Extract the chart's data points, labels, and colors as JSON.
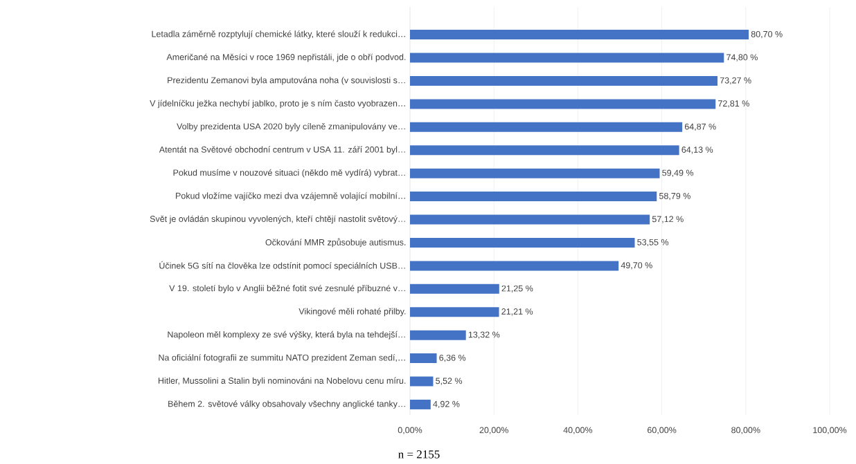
{
  "chart_data": {
    "type": "bar",
    "orientation": "horizontal",
    "categories": [
      "Letadla záměrně rozptylují chemické látky, které slouží k redukci…",
      "Američané na Měsíci v roce 1969 nepřistáli, jde o obří podvod.",
      "Prezidentu Zemanovi byla amputována noha (v souvislosti s…",
      "V jídelníčku ježka nechybí jablko, proto je s ním často vyobrazen…",
      "Volby prezidenta USA 2020 byly cíleně zmanipulovány ve…",
      "Atentát na Světové obchodní centrum v USA 11. září 2001 byl…",
      "Pokud musíme v nouzové situaci (někdo mě vydírá) vybrat…",
      "Pokud vložíme vajíčko mezi dva vzájemně volající mobilní…",
      "Svět je ovládán skupinou vyvolených, kteří chtějí nastolit světový…",
      "Očkování MMR způsobuje autismus.",
      "Účinek 5G sítí na člověka lze odstínit pomocí speciálních USB…",
      "V 19. století bylo v Anglii běžné fotit své zesnulé příbuzné v…",
      "Vikingové měli rohaté přilby.",
      "Napoleon měl komplexy ze své výšky, která byla na tehdejší…",
      "Na oficiální fotografii ze summitu NATO prezident Zeman sedí,…",
      "Hitler, Mussolini a Stalin byli nominováni na Nobelovu cenu míru.",
      "Během 2. světové války obsahovaly všechny anglické tanky…"
    ],
    "values": [
      80.7,
      74.8,
      73.27,
      72.81,
      64.87,
      64.13,
      59.49,
      58.79,
      57.12,
      53.55,
      49.7,
      21.25,
      21.21,
      13.32,
      6.36,
      5.52,
      4.92
    ],
    "value_labels": [
      "80,70 %",
      "74,80 %",
      "73,27 %",
      "72,81 %",
      "64,87 %",
      "64,13 %",
      "59,49 %",
      "58,79 %",
      "57,12 %",
      "53,55 %",
      "49,70 %",
      "21,25 %",
      "21,21 %",
      "13,32 %",
      "6,36 %",
      "5,52 %",
      "4,92 %"
    ],
    "color": "#4472c4",
    "xlim": [
      0,
      100
    ],
    "xticks": [
      {
        "value": 0,
        "label": "0,00%"
      },
      {
        "value": 20,
        "label": "20,00%"
      },
      {
        "value": 40,
        "label": "40,00%"
      },
      {
        "value": 60,
        "label": "60,00%"
      },
      {
        "value": 80,
        "label": "80,00%"
      },
      {
        "value": 100,
        "label": "100,00%"
      }
    ],
    "grid": "x",
    "annotations": [
      "n = 2155"
    ]
  }
}
